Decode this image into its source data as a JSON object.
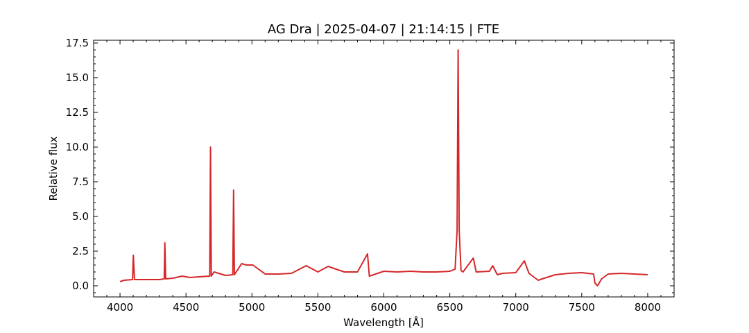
{
  "chart_data": {
    "type": "line",
    "title": "AG Dra | 2025-04-07 | 21:14:15 | FTE",
    "xlabel": "Wavelength [Å]",
    "ylabel": "Relative flux",
    "xlim": [
      3800,
      8200
    ],
    "ylim": [
      -0.8,
      17.7
    ],
    "xticks": [
      4000,
      4500,
      5000,
      5500,
      6000,
      6500,
      7000,
      7500,
      8000
    ],
    "xtick_labels": [
      "4000",
      "4500",
      "5000",
      "5500",
      "6000",
      "6500",
      "7000",
      "7500",
      "8000"
    ],
    "yticks": [
      0.0,
      2.5,
      5.0,
      7.5,
      10.0,
      12.5,
      15.0,
      17.5
    ],
    "ytick_labels": [
      "0.0",
      "2.5",
      "5.0",
      "7.5",
      "10.0",
      "12.5",
      "15.0",
      "17.5"
    ],
    "grid": false,
    "line_color": "#d62728",
    "series": [
      {
        "x": [
          4000,
          4030,
          4095,
          4101,
          4110,
          4200,
          4300,
          4335,
          4340,
          4346,
          4400,
          4471,
          4530,
          4600,
          4680,
          4686,
          4692,
          4713,
          4800,
          4855,
          4861,
          4867,
          4922,
          4959,
          5007,
          5100,
          5200,
          5300,
          5411,
          5500,
          5577,
          5700,
          5800,
          5876,
          5890,
          6000,
          6100,
          6200,
          6300,
          6400,
          6500,
          6540,
          6555,
          6563,
          6571,
          6585,
          6600,
          6678,
          6700,
          6800,
          6825,
          6860,
          6900,
          7000,
          7065,
          7100,
          7170,
          7200,
          7300,
          7400,
          7500,
          7590,
          7600,
          7620,
          7650,
          7700,
          7800,
          7900,
          8000
        ],
        "y": [
          0.3,
          0.4,
          0.45,
          2.2,
          0.45,
          0.45,
          0.45,
          0.5,
          3.1,
          0.5,
          0.55,
          0.7,
          0.6,
          0.65,
          0.7,
          10.0,
          0.7,
          1.0,
          0.75,
          0.8,
          6.9,
          0.8,
          1.6,
          1.5,
          1.5,
          0.85,
          0.85,
          0.9,
          1.45,
          1.0,
          1.4,
          1.0,
          1.0,
          2.3,
          0.7,
          1.05,
          1.0,
          1.05,
          1.0,
          1.0,
          1.05,
          1.2,
          4.0,
          17.0,
          4.0,
          1.1,
          1.0,
          2.0,
          1.0,
          1.05,
          1.45,
          0.8,
          0.9,
          0.95,
          1.8,
          0.9,
          0.4,
          0.5,
          0.8,
          0.9,
          0.95,
          0.85,
          0.2,
          0.0,
          0.5,
          0.85,
          0.9,
          0.85,
          0.8
        ]
      }
    ]
  }
}
